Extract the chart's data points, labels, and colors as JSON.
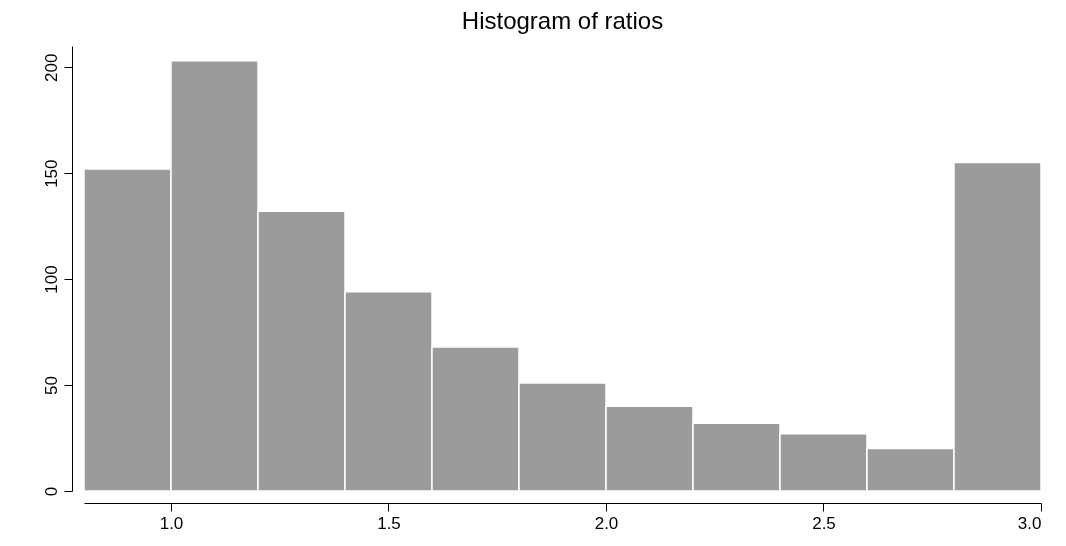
{
  "chart_data": {
    "type": "histogram",
    "title": "Histogram of ratios",
    "bins": [
      0.8,
      1.0,
      1.2,
      1.4,
      1.6,
      1.8,
      2.0,
      2.2,
      2.4,
      2.6,
      2.8,
      3.0
    ],
    "values": [
      152,
      203,
      132,
      94,
      68,
      51,
      40,
      32,
      27,
      20,
      155
    ],
    "color": "#9b9b9b",
    "xlim": [
      0.8,
      3.0
    ],
    "xticks": [
      {
        "value": 1,
        "label": "1.0"
      },
      1.5,
      {
        "value": 2,
        "label": "2.0"
      },
      2.5,
      {
        "value": 3,
        "label": "3.0"
      }
    ],
    "ylim": [
      0,
      210
    ],
    "yticks": [
      0,
      50,
      100,
      150,
      200
    ],
    "grid": false
  }
}
